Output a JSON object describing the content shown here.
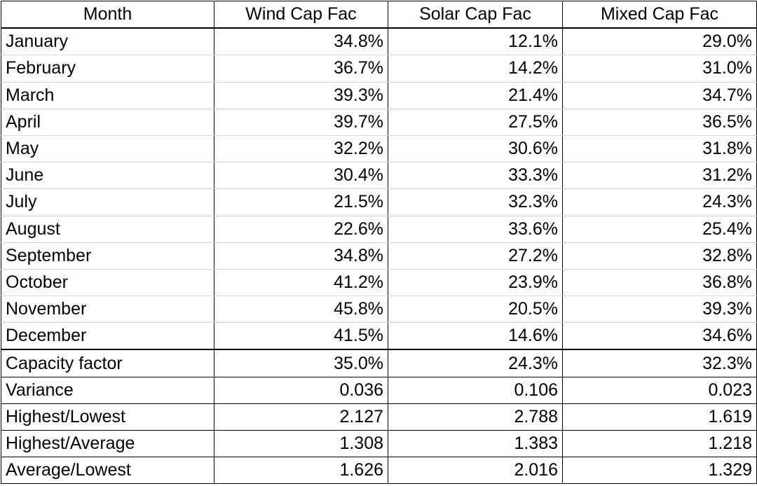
{
  "table": {
    "headers": [
      "Month",
      "Wind Cap Fac",
      "Solar Cap Fac",
      "Mixed Cap Fac"
    ],
    "months": [
      {
        "label": "January",
        "wind": "34.8%",
        "solar": "12.1%",
        "mixed": "29.0%"
      },
      {
        "label": "February",
        "wind": "36.7%",
        "solar": "14.2%",
        "mixed": "31.0%"
      },
      {
        "label": "March",
        "wind": "39.3%",
        "solar": "21.4%",
        "mixed": "34.7%"
      },
      {
        "label": "April",
        "wind": "39.7%",
        "solar": "27.5%",
        "mixed": "36.5%"
      },
      {
        "label": "May",
        "wind": "32.2%",
        "solar": "30.6%",
        "mixed": "31.8%"
      },
      {
        "label": "June",
        "wind": "30.4%",
        "solar": "33.3%",
        "mixed": "31.2%"
      },
      {
        "label": "July",
        "wind": "21.5%",
        "solar": "32.3%",
        "mixed": "24.3%"
      },
      {
        "label": "August",
        "wind": "22.6%",
        "solar": "33.6%",
        "mixed": "25.4%"
      },
      {
        "label": "September",
        "wind": "34.8%",
        "solar": "27.2%",
        "mixed": "32.8%"
      },
      {
        "label": "October",
        "wind": "41.2%",
        "solar": "23.9%",
        "mixed": "36.8%"
      },
      {
        "label": "November",
        "wind": "45.8%",
        "solar": "20.5%",
        "mixed": "39.3%"
      },
      {
        "label": "December",
        "wind": "41.5%",
        "solar": "14.6%",
        "mixed": "34.6%"
      }
    ],
    "stats": [
      {
        "label": "Capacity factor",
        "wind": "35.0%",
        "solar": "24.3%",
        "mixed": "32.3%"
      },
      {
        "label": "Variance",
        "wind": "0.036",
        "solar": "0.106",
        "mixed": "0.023"
      },
      {
        "label": "Highest/Lowest",
        "wind": "2.127",
        "solar": "2.788",
        "mixed": "1.619"
      },
      {
        "label": "Highest/Average",
        "wind": "1.308",
        "solar": "1.383",
        "mixed": "1.218"
      },
      {
        "label": "Average/Lowest",
        "wind": "1.626",
        "solar": "2.016",
        "mixed": "1.329"
      }
    ]
  }
}
